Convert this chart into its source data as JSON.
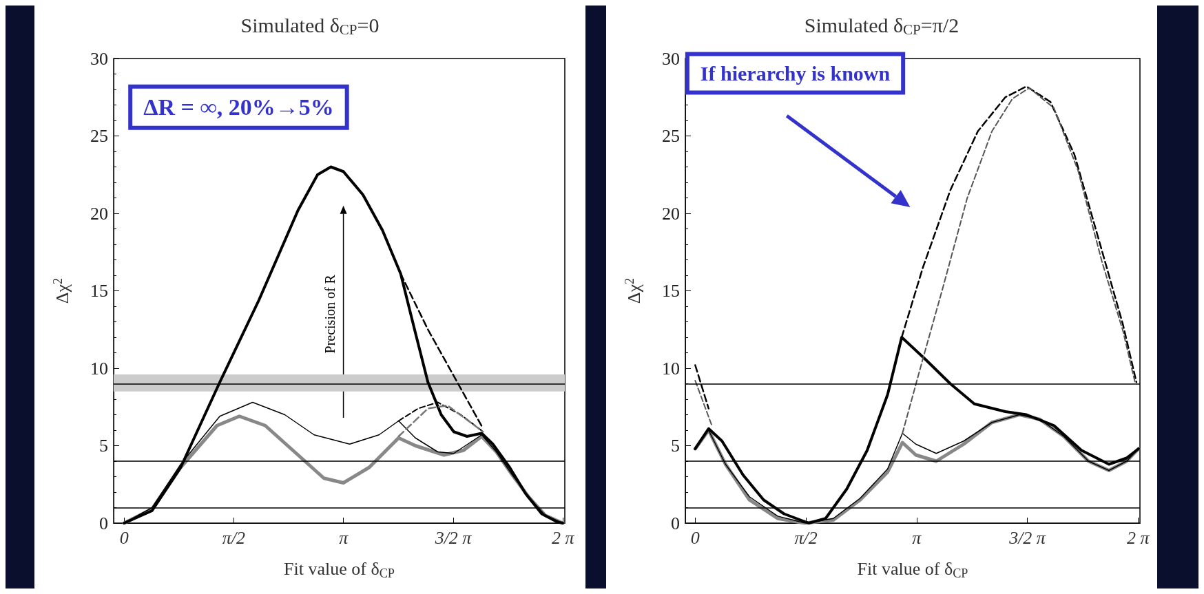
{
  "chart_data": [
    {
      "type": "line",
      "title": "Simulated δ$_{CP}$=0",
      "xlabel": "Fit value of δ$_{CP}$",
      "ylabel": "Δχ$^{2}$",
      "xlim": [
        -0.15,
        6.31
      ],
      "ylim": [
        0,
        30
      ],
      "xticks": [
        0,
        {
          "value": 1.5708,
          "label": "π/2"
        },
        {
          "value": 3.1416,
          "label": "π"
        },
        {
          "value": 4.7124,
          "label": "3/2 π"
        },
        {
          "value": 6.2832,
          "label": "2 π"
        }
      ],
      "yticks": [
        0,
        5,
        10,
        15,
        20,
        25,
        30
      ],
      "grid": false,
      "marker": "none",
      "annotations": [
        "ΔR = ∞, 20%→5%",
        "Precision of R"
      ],
      "ref_lines": [
        {
          "axis": "y",
          "value": 1,
          "color": "#000000"
        },
        {
          "axis": "y",
          "value": 4,
          "color": "#000000"
        },
        {
          "axis": "y",
          "value": 9,
          "color": "#000000"
        }
      ],
      "bands": [
        {
          "axis": "y",
          "from": 8.5,
          "to": 9.6,
          "color": "#cccccc"
        }
      ],
      "series": [
        {
          "color": "#888888",
          "line_style": "solid",
          "x": [
            0,
            0.4,
            0.81,
            1.33,
            1.65,
            2.02,
            2.49,
            2.86,
            3.14,
            3.51,
            3.93,
            4.17,
            4.58,
            4.86,
            5.12,
            5.33,
            5.56,
            5.79,
            6.03,
            6.28
          ],
          "values": [
            0,
            0.9,
            3.6,
            6.3,
            6.9,
            6.3,
            4.4,
            2.9,
            2.6,
            3.6,
            5.5,
            5.0,
            4.4,
            4.7,
            5.6,
            4.6,
            3.1,
            1.7,
            0.5,
            0
          ]
        },
        {
          "color": "#000000",
          "line_style": "solid",
          "x": [
            0,
            0.4,
            0.81,
            1.37,
            1.84,
            2.3,
            2.72,
            3.23,
            3.65,
            3.93,
            4.17,
            4.49,
            4.72,
            5.12,
            5.33,
            5.56,
            5.79,
            6.03,
            6.28
          ],
          "values": [
            0,
            1.0,
            3.8,
            6.9,
            7.8,
            7.0,
            5.7,
            5.1,
            5.7,
            6.6,
            5.5,
            4.6,
            4.5,
            5.7,
            4.6,
            3.1,
            1.7,
            0.5,
            0
          ]
        },
        {
          "color": "#000000",
          "line_style": "solid",
          "x": [
            0,
            0.4,
            0.81,
            1.37,
            1.93,
            2.49,
            2.77,
            2.96,
            3.14,
            3.42,
            3.7,
            3.96,
            4.17,
            4.35,
            4.54,
            4.72,
            4.91,
            5.12,
            5.28,
            5.52,
            5.75,
            5.98,
            6.21,
            6.28
          ],
          "values": [
            0,
            0.8,
            3.6,
            9.1,
            14.4,
            20.2,
            22.5,
            23.0,
            22.7,
            21.2,
            18.9,
            16.1,
            12.3,
            9.1,
            7.0,
            5.9,
            5.6,
            5.8,
            5.1,
            3.6,
            1.9,
            0.6,
            0.06,
            0
          ]
        },
        {
          "color": "#000000",
          "line_style": "dashed",
          "x": [
            3.96,
            4.35,
            4.77,
            5.14
          ],
          "values": [
            16.1,
            12.5,
            9.1,
            6.1
          ]
        },
        {
          "color": "#000000",
          "line_style": "dashed",
          "x": [
            3.93,
            4.21,
            4.49,
            4.82,
            5.14
          ],
          "values": [
            6.6,
            7.4,
            7.8,
            7.0,
            5.9
          ]
        },
        {
          "color": "#777777",
          "line_style": "dashed",
          "x": [
            3.93,
            4.35,
            4.63,
            5.14
          ],
          "values": [
            5.6,
            7.4,
            7.6,
            5.9
          ]
        }
      ]
    },
    {
      "type": "line",
      "title": "Simulated δ$_{CP}$=π/2",
      "xlabel": "Fit value of δ$_{CP}$",
      "ylabel": "Δχ$^{2}$",
      "xlim": [
        -0.14,
        6.31
      ],
      "ylim": [
        0,
        30
      ],
      "xticks": [
        0,
        {
          "value": 1.5708,
          "label": "π/2"
        },
        {
          "value": 3.1416,
          "label": "π"
        },
        {
          "value": 4.7124,
          "label": "3/2 π"
        },
        {
          "value": 6.2832,
          "label": "2 π"
        }
      ],
      "yticks": [
        0,
        5,
        10,
        15,
        20,
        25,
        30
      ],
      "grid": false,
      "marker": "none",
      "annotations": [
        "If hierarchy is known"
      ],
      "ref_lines": [
        {
          "axis": "y",
          "value": 1,
          "color": "#000000"
        },
        {
          "axis": "y",
          "value": 4,
          "color": "#000000"
        },
        {
          "axis": "y",
          "value": 9,
          "color": "#000000"
        }
      ],
      "series": [
        {
          "color": "#888888",
          "line_style": "solid",
          "x": [
            0,
            0.19,
            0.43,
            0.77,
            1.17,
            1.56,
            1.96,
            2.34,
            2.73,
            2.94,
            3.13,
            3.42,
            3.81,
            4.21,
            4.6,
            4.89,
            5.23,
            5.58,
            5.87,
            6.12,
            6.29
          ],
          "values": [
            4.8,
            6.0,
            3.8,
            1.5,
            0.3,
            0,
            0.2,
            1.5,
            3.3,
            5.2,
            4.4,
            4.0,
            5.1,
            6.5,
            7.0,
            6.7,
            5.6,
            4.0,
            3.4,
            4.0,
            4.8
          ]
        },
        {
          "color": "#000000",
          "line_style": "solid",
          "x": [
            0,
            0.19,
            0.43,
            0.77,
            1.17,
            1.56,
            1.96,
            2.34,
            2.73,
            2.94,
            3.13,
            3.42,
            3.81,
            4.21,
            4.6,
            4.89,
            5.23,
            5.58,
            5.87,
            6.12,
            6.29
          ],
          "values": [
            4.8,
            6.0,
            3.8,
            1.7,
            0.45,
            0,
            0.3,
            1.6,
            3.5,
            5.8,
            5.1,
            4.5,
            5.3,
            6.5,
            7.0,
            6.7,
            5.6,
            4.0,
            3.4,
            4.0,
            4.8
          ]
        },
        {
          "color": "#000000",
          "line_style": "solid",
          "x": [
            0,
            0.19,
            0.38,
            0.68,
            0.97,
            1.26,
            1.61,
            1.85,
            2.15,
            2.44,
            2.73,
            2.93,
            3.26,
            3.62,
            3.96,
            4.4,
            4.7,
            5.09,
            5.48,
            5.87,
            6.12,
            6.29
          ],
          "values": [
            4.8,
            6.1,
            5.3,
            3.1,
            1.5,
            0.6,
            0,
            0.3,
            2.2,
            4.7,
            8.3,
            12.0,
            10.6,
            9.0,
            7.7,
            7.2,
            7.0,
            6.3,
            4.7,
            3.8,
            4.2,
            4.8
          ]
        },
        {
          "color": "#000000",
          "line_style": "dashed",
          "x": [
            0,
            0.19
          ],
          "values": [
            10.2,
            7.4
          ]
        },
        {
          "color": "#000000",
          "line_style": "dashed",
          "x": [
            2.93,
            3.23,
            3.62,
            4.01,
            4.4,
            4.7,
            5.04,
            5.38,
            5.77,
            6.07,
            6.26
          ],
          "values": [
            12.0,
            16.5,
            21.5,
            25.3,
            27.5,
            28.2,
            27.2,
            23.8,
            17.6,
            12.8,
            9.1
          ]
        },
        {
          "color": "#555555",
          "line_style": "dashed",
          "x": [
            0,
            0.24
          ],
          "values": [
            9.2,
            6.25
          ]
        },
        {
          "color": "#555555",
          "line_style": "dashed",
          "x": [
            2.94,
            3.23,
            3.52,
            3.86,
            4.21,
            4.5,
            4.74,
            5.09,
            5.43,
            5.77,
            6.07,
            6.24
          ],
          "values": [
            5.8,
            10.6,
            15.3,
            21.0,
            25.3,
            27.4,
            28.1,
            26.8,
            22.8,
            16.9,
            12.4,
            9.1
          ]
        }
      ]
    }
  ]
}
